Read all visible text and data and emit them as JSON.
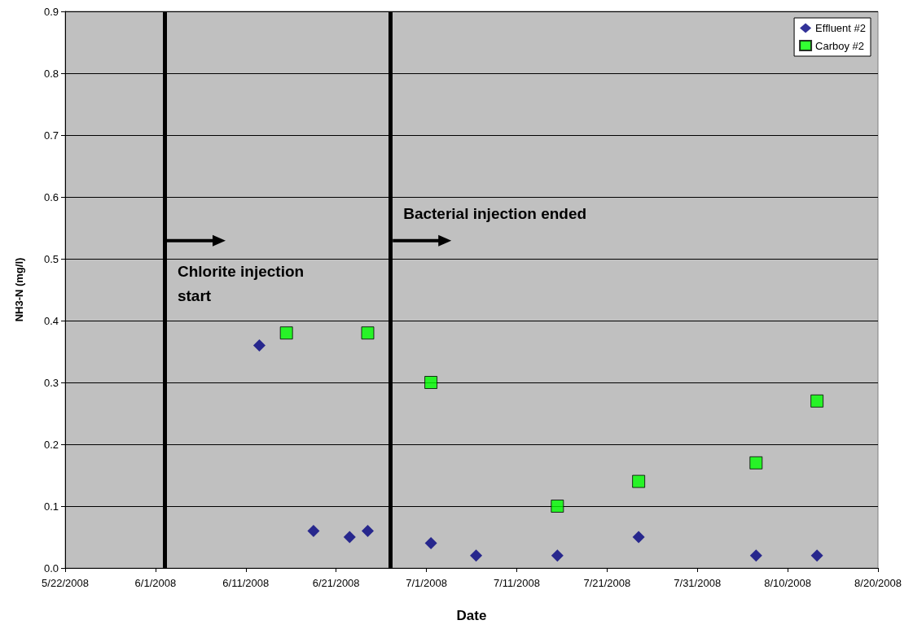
{
  "chart_data": {
    "type": "scatter",
    "xlabel": "Date",
    "ylabel": "NH3-N (mg/l)",
    "series": [
      {
        "name": "Effluent #2",
        "color": "#000080",
        "marker": "diamond",
        "x": [
          "2008-06-12T12:00",
          "2008-06-18T12:00",
          "2008-06-22T12:00",
          "2008-06-24T12:00",
          "2008-07-01T12:00",
          "2008-07-06T12:00",
          "2008-07-15T12:00",
          "2008-07-24T12:00",
          "2008-08-06T12:00",
          "2008-08-13T06:00"
        ],
        "values": [
          0.36,
          0.06,
          0.05,
          0.06,
          0.04,
          0.02,
          0.02,
          0.05,
          0.02,
          0.02
        ]
      },
      {
        "name": "Carboy #2",
        "color": "#00ff00",
        "marker": "square",
        "x": [
          "2008-06-15T12:00",
          "2008-06-24T12:00",
          "2008-07-01T12:00",
          "2008-07-15T12:00",
          "2008-07-24T12:00",
          "2008-08-06T12:00",
          "2008-08-13T06:00"
        ],
        "values": [
          0.38,
          0.38,
          0.3,
          0.1,
          0.14,
          0.17,
          0.27
        ]
      }
    ],
    "xlim": [
      "2008-05-22",
      "2008-08-20"
    ],
    "xticks": [
      {
        "value": "2008-05-22",
        "label": "5/22/2008"
      },
      {
        "value": "2008-06-01",
        "label": "6/1/2008"
      },
      {
        "value": "2008-06-11",
        "label": "6/11/2008"
      },
      {
        "value": "2008-06-21",
        "label": "6/21/2008"
      },
      {
        "value": "2008-07-01",
        "label": "7/1/2008"
      },
      {
        "value": "2008-07-11",
        "label": "7/11/2008"
      },
      {
        "value": "2008-07-21",
        "label": "7/21/2008"
      },
      {
        "value": "2008-07-31",
        "label": "7/31/2008"
      },
      {
        "value": "2008-08-10",
        "label": "8/10/2008"
      },
      {
        "value": "2008-08-20",
        "label": "8/20/2008"
      }
    ],
    "ylim": [
      0,
      0.9
    ],
    "yticks": [
      {
        "value": 0,
        "label": "0.0"
      },
      0.1,
      0.2,
      0.3,
      0.4,
      0.5,
      0.6,
      0.7,
      0.8,
      0.9
    ],
    "ref_lines": [
      {
        "axis": "x",
        "value": "2008-06-02",
        "color": "#000000"
      },
      {
        "axis": "x",
        "value": "2008-06-27",
        "color": "#000000"
      }
    ],
    "annotations": [
      "Chlorite injection start",
      "Bacterial injection ended"
    ],
    "grid": "y",
    "legend": "top right"
  }
}
